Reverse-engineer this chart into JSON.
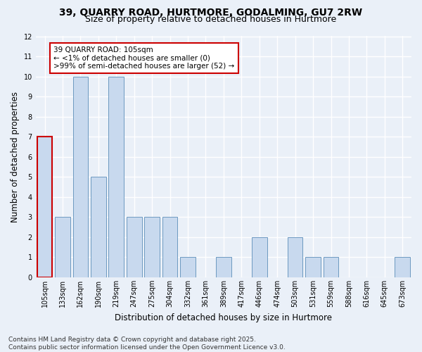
{
  "title1": "39, QUARRY ROAD, HURTMORE, GODALMING, GU7 2RW",
  "title2": "Size of property relative to detached houses in Hurtmore",
  "xlabel": "Distribution of detached houses by size in Hurtmore",
  "ylabel": "Number of detached properties",
  "categories": [
    "105sqm",
    "133sqm",
    "162sqm",
    "190sqm",
    "219sqm",
    "247sqm",
    "275sqm",
    "304sqm",
    "332sqm",
    "361sqm",
    "389sqm",
    "417sqm",
    "446sqm",
    "474sqm",
    "503sqm",
    "531sqm",
    "559sqm",
    "588sqm",
    "616sqm",
    "645sqm",
    "673sqm"
  ],
  "values": [
    7,
    3,
    10,
    5,
    10,
    3,
    3,
    3,
    1,
    0,
    1,
    0,
    2,
    0,
    2,
    1,
    1,
    0,
    0,
    0,
    1
  ],
  "bar_color": "#c8d9ee",
  "bar_edge_color": "#5b8db8",
  "highlight_index": 0,
  "highlight_edge_color": "#cc0000",
  "annotation_box_color": "#ffffff",
  "annotation_box_edge": "#cc0000",
  "annotation_text": "39 QUARRY ROAD: 105sqm\n← <1% of detached houses are smaller (0)\n>99% of semi-detached houses are larger (52) →",
  "annotation_fontsize": 7.5,
  "ylim": [
    0,
    12
  ],
  "yticks": [
    0,
    1,
    2,
    3,
    4,
    5,
    6,
    7,
    8,
    9,
    10,
    11,
    12
  ],
  "bg_color": "#eaf0f8",
  "grid_color": "#ffffff",
  "footer1": "Contains HM Land Registry data © Crown copyright and database right 2025.",
  "footer2": "Contains public sector information licensed under the Open Government Licence v3.0.",
  "title_fontsize": 10,
  "subtitle_fontsize": 9,
  "axis_label_fontsize": 8.5,
  "tick_fontsize": 7,
  "footer_fontsize": 6.5
}
